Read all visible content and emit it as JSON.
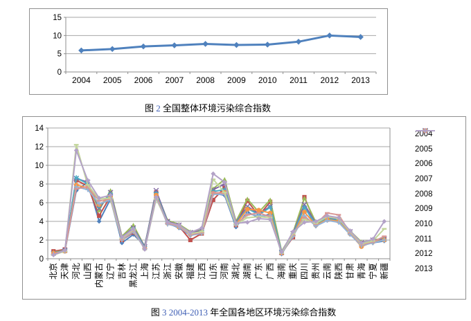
{
  "captions": [
    {
      "prefix": "图",
      "number": "2",
      "rest": "全国整体环境污染综合指数",
      "number_color": "#3f5fb5"
    },
    {
      "prefix": "图",
      "number": "3 2004-2013",
      "rest": "年全国各地区环境污染综合指数",
      "number_color": "#3f5fb5"
    }
  ],
  "chart_data": [
    {
      "type": "line",
      "title": "",
      "categories": [
        "2004",
        "2005",
        "2006",
        "2007",
        "2008",
        "2009",
        "2010",
        "2011",
        "2012",
        "2013"
      ],
      "series": [
        {
          "name": "全国整体环境污染综合指数",
          "color": "#4F81BD",
          "marker": "diamond",
          "values": [
            5.9,
            6.3,
            7.0,
            7.3,
            7.7,
            7.4,
            7.5,
            8.3,
            10.0,
            9.6
          ]
        }
      ],
      "xlabel": "",
      "ylabel": "",
      "ylim": [
        0,
        15
      ],
      "yticks": [
        0,
        5,
        10,
        15
      ],
      "grid": true,
      "legend": "none"
    },
    {
      "type": "line",
      "title": "",
      "categories": [
        "北京",
        "天津",
        "河北",
        "山西",
        "内蒙古",
        "辽宁",
        "吉林",
        "黑龙江",
        "上海",
        "江苏",
        "浙江",
        "安徽",
        "福建",
        "江西",
        "山东",
        "河南",
        "湖北",
        "湖南",
        "广东",
        "广西",
        "海南",
        "重庆",
        "四川",
        "贵州",
        "云南",
        "陕西",
        "甘肃",
        "青海",
        "宁夏",
        "新疆"
      ],
      "series": [
        {
          "name": "2004",
          "color": "#4F81BD",
          "marker": "diamond",
          "values": [
            0.5,
            0.8,
            7.3,
            8.2,
            4.0,
            6.4,
            1.7,
            2.6,
            1.4,
            7.0,
            3.8,
            3.3,
            2.5,
            2.9,
            7.0,
            6.8,
            3.4,
            5.0,
            4.4,
            4.8,
            0.5,
            2.5,
            5.6,
            3.5,
            4.1,
            4.0,
            2.6,
            1.6,
            1.7,
            1.9
          ]
        },
        {
          "name": "2005",
          "color": "#C0504D",
          "marker": "square",
          "values": [
            0.8,
            1.0,
            8.4,
            7.8,
            4.6,
            6.7,
            2.0,
            2.8,
            1.3,
            7.1,
            4.0,
            3.5,
            2.0,
            2.7,
            6.3,
            7.6,
            3.6,
            6.2,
            4.6,
            6.1,
            0.6,
            2.3,
            6.6,
            3.7,
            4.2,
            4.1,
            2.8,
            1.7,
            1.9,
            2.1
          ]
        },
        {
          "name": "2006",
          "color": "#9BBB59",
          "marker": "triangle",
          "values": [
            0.7,
            0.9,
            8.6,
            8.1,
            5.2,
            7.3,
            2.4,
            3.6,
            1.3,
            7.2,
            4.1,
            3.7,
            2.9,
            3.1,
            7.5,
            8.5,
            4.0,
            6.4,
            5.0,
            6.3,
            0.8,
            2.8,
            6.5,
            3.9,
            4.4,
            4.3,
            3.0,
            1.8,
            2.0,
            2.2
          ]
        },
        {
          "name": "2007",
          "color": "#8064A2",
          "marker": "x",
          "values": [
            0.6,
            0.9,
            8.6,
            8.2,
            5.4,
            7.1,
            2.3,
            3.3,
            1.3,
            7.3,
            4.0,
            3.6,
            2.8,
            3.0,
            7.4,
            8.0,
            3.9,
            5.6,
            4.8,
            5.6,
            0.7,
            2.7,
            5.8,
            3.8,
            4.3,
            4.2,
            2.9,
            1.7,
            2.0,
            2.1
          ]
        },
        {
          "name": "2008",
          "color": "#4BACC6",
          "marker": "asterisk",
          "values": [
            0.6,
            0.9,
            8.7,
            8.0,
            5.6,
            6.9,
            2.2,
            3.2,
            1.2,
            7.0,
            3.9,
            3.5,
            2.7,
            2.9,
            7.2,
            7.4,
            3.8,
            5.4,
            4.7,
            5.5,
            0.7,
            2.6,
            5.5,
            3.7,
            4.3,
            4.1,
            2.8,
            1.6,
            1.9,
            2.0
          ]
        },
        {
          "name": "2009",
          "color": "#F79646",
          "marker": "circle",
          "values": [
            0.6,
            0.8,
            7.9,
            7.6,
            5.8,
            6.6,
            2.1,
            3.0,
            1.1,
            6.8,
            3.8,
            3.4,
            2.6,
            2.8,
            7.0,
            7.1,
            3.7,
            5.3,
            5.2,
            4.9,
            0.6,
            2.5,
            5.0,
            3.6,
            4.2,
            4.0,
            2.7,
            1.3,
            1.8,
            2.0
          ]
        },
        {
          "name": "2010",
          "color": "#95B3D7",
          "marker": "plus",
          "values": [
            0.5,
            0.8,
            7.7,
            7.4,
            5.9,
            6.3,
            2.0,
            2.9,
            1.1,
            6.6,
            3.7,
            3.4,
            2.5,
            2.7,
            6.9,
            6.9,
            3.6,
            4.8,
            4.6,
            4.6,
            0.6,
            2.4,
            4.6,
            3.5,
            4.1,
            3.9,
            2.6,
            1.4,
            1.7,
            2.0
          ]
        },
        {
          "name": "2011",
          "color": "#D99694",
          "marker": "dash",
          "values": [
            0.5,
            0.9,
            7.5,
            7.7,
            6.2,
            6.4,
            2.1,
            3.0,
            1.1,
            6.5,
            3.8,
            3.5,
            2.6,
            2.8,
            7.1,
            7.0,
            3.7,
            4.7,
            4.9,
            4.5,
            0.7,
            2.6,
            4.4,
            3.7,
            4.9,
            4.7,
            2.8,
            1.5,
            1.8,
            2.4
          ]
        },
        {
          "name": "2012",
          "color": "#C3D69B",
          "marker": "dash",
          "values": [
            0.4,
            0.8,
            12.2,
            7.9,
            6.4,
            6.5,
            2.2,
            3.1,
            1.0,
            6.4,
            3.9,
            3.6,
            2.7,
            2.9,
            8.5,
            7.1,
            3.7,
            4.4,
            4.5,
            4.4,
            0.6,
            2.7,
            4.2,
            3.8,
            4.5,
            4.3,
            2.9,
            1.6,
            1.9,
            3.2
          ]
        },
        {
          "name": "2013",
          "color": "#B3A2C7",
          "marker": "diamond",
          "values": [
            0.4,
            0.9,
            11.6,
            8.4,
            6.5,
            6.8,
            2.3,
            3.2,
            1.0,
            6.6,
            3.9,
            3.6,
            2.8,
            3.3,
            9.1,
            8.2,
            3.8,
            3.9,
            4.3,
            4.2,
            0.7,
            2.9,
            3.9,
            4.0,
            4.6,
            4.4,
            3.0,
            1.7,
            2.1,
            4.0
          ]
        }
      ],
      "xlabel": "",
      "ylabel": "",
      "ylim": [
        0,
        14
      ],
      "yticks": [
        0,
        2,
        4,
        6,
        8,
        10,
        12,
        14
      ],
      "grid": true,
      "legend": "right"
    }
  ]
}
